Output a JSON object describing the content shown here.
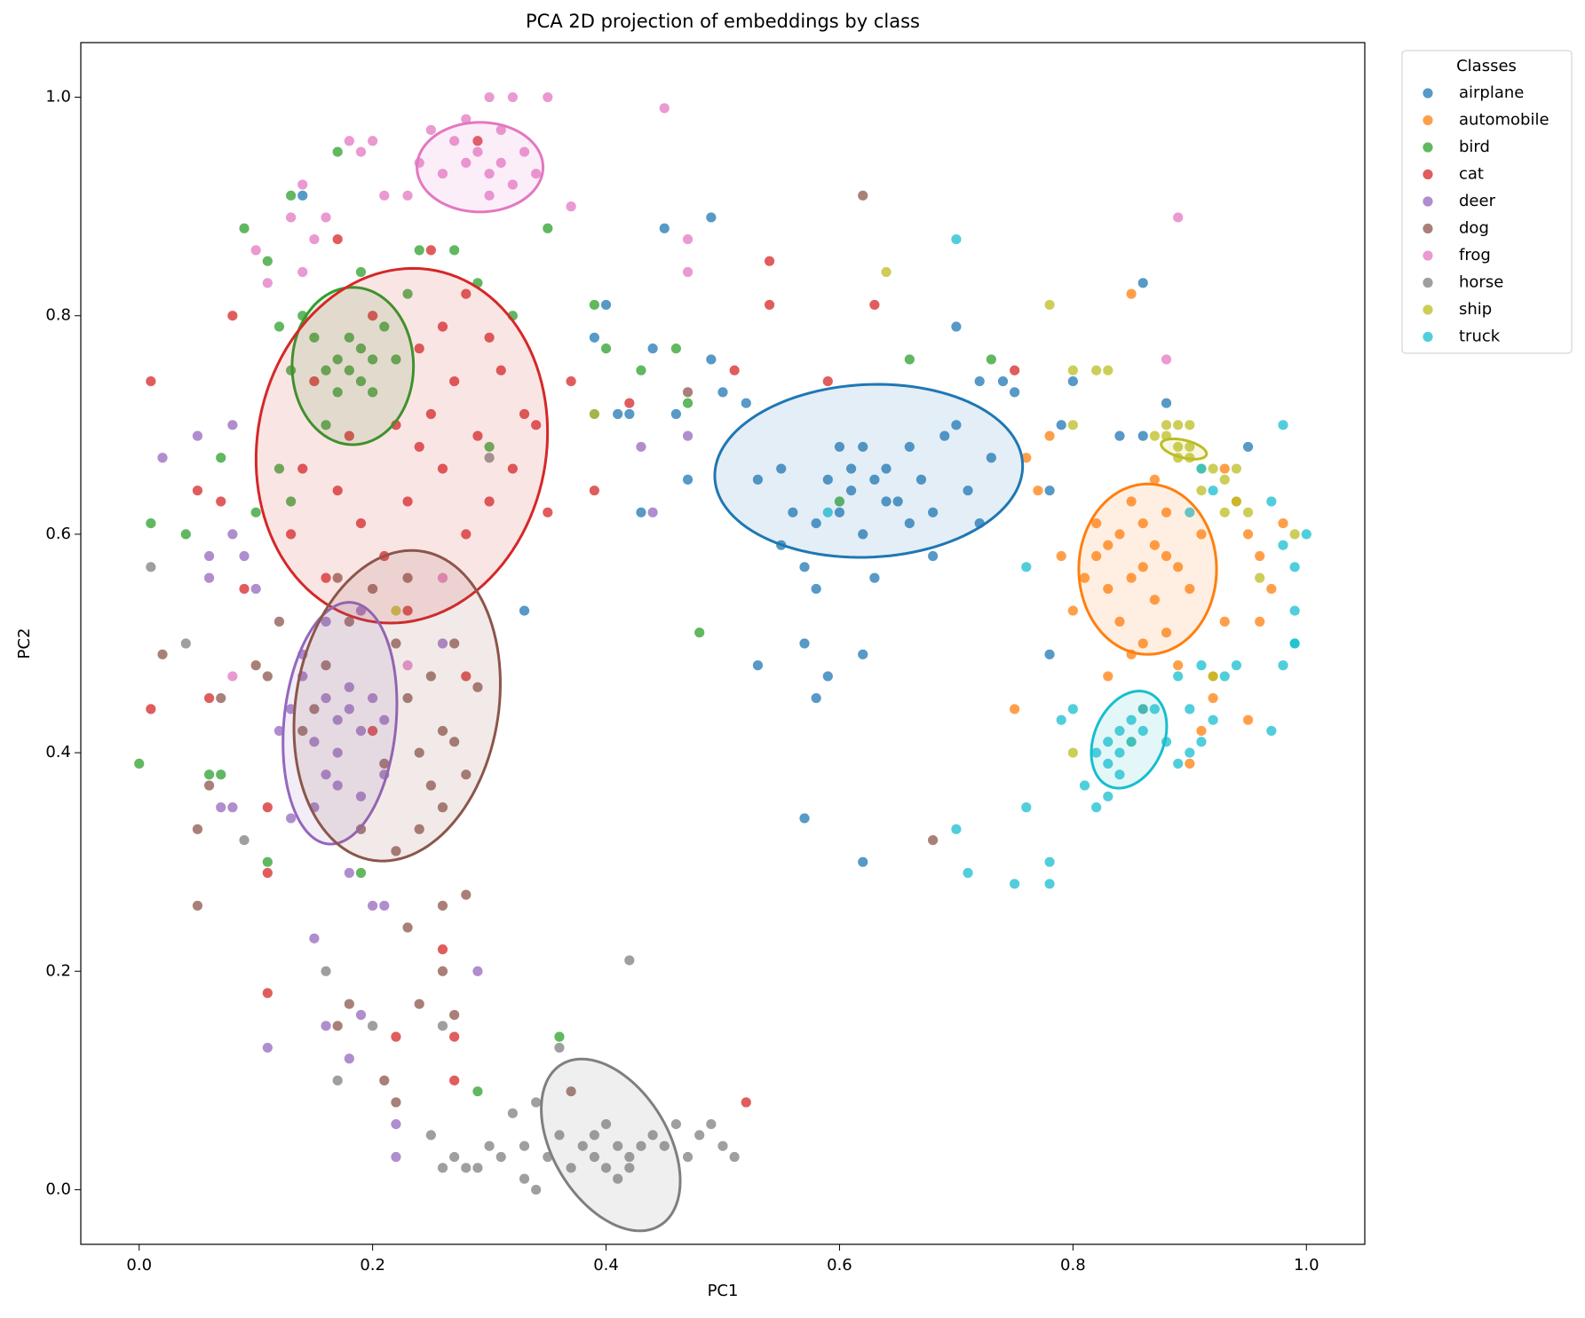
{
  "chart_data": {
    "type": "scatter",
    "title": "PCA 2D projection of embeddings by class",
    "x_label": "PC1",
    "y_label": "PC2",
    "xlim": [
      -0.05,
      1.05
    ],
    "ylim": [
      -0.05,
      1.05
    ],
    "xticks": [
      {
        "value": 0,
        "label": "0.0"
      },
      0.2,
      0.4,
      0.6,
      0.8,
      {
        "value": 1,
        "label": "1.0"
      }
    ],
    "yticks": [
      {
        "value": 0,
        "label": "0.0"
      },
      0.2,
      0.4,
      0.6,
      0.8,
      {
        "value": 1,
        "label": "1.0"
      }
    ],
    "grid": false,
    "legend": "outside-upper-right",
    "legend_title": "Classes",
    "series": [
      {
        "name": "airplane",
        "color": "#1f77b4",
        "x": [
          0.5,
          0.52,
          0.49,
          0.46,
          0.44,
          0.42,
          0.4,
          0.39,
          0.47,
          0.49,
          0.45,
          0.14,
          0.53,
          0.55,
          0.56,
          0.57,
          0.58,
          0.57,
          0.53,
          0.58,
          0.59,
          0.62,
          0.63,
          0.6,
          0.61,
          0.62,
          0.63,
          0.64,
          0.65,
          0.66,
          0.67,
          0.68,
          0.69,
          0.7,
          0.71,
          0.72,
          0.73,
          0.6,
          0.61,
          0.62,
          0.64,
          0.59,
          0.58,
          0.66,
          0.7,
          0.72,
          0.74,
          0.75,
          0.79,
          0.8,
          0.78,
          0.84,
          0.88,
          0.86,
          0.95,
          0.57,
          0.62,
          0.33,
          0.43,
          0.41,
          0.86,
          0.78,
          0.68,
          0.55,
          0.39
        ],
        "values": [
          0.73,
          0.72,
          0.76,
          0.71,
          0.77,
          0.71,
          0.81,
          0.78,
          0.65,
          0.89,
          0.88,
          0.91,
          0.65,
          0.66,
          0.62,
          0.57,
          0.55,
          0.5,
          0.48,
          0.45,
          0.47,
          0.49,
          0.56,
          0.68,
          0.66,
          0.68,
          0.65,
          0.66,
          0.63,
          0.61,
          0.65,
          0.62,
          0.69,
          0.7,
          0.64,
          0.61,
          0.67,
          0.62,
          0.64,
          0.6,
          0.63,
          0.65,
          0.61,
          0.68,
          0.79,
          0.74,
          0.74,
          0.73,
          0.7,
          0.74,
          0.64,
          0.69,
          0.72,
          0.83,
          0.68,
          0.34,
          0.3,
          0.53,
          0.62,
          0.71,
          0.69,
          0.49,
          0.58,
          0.59,
          0.71
        ],
        "ellipse": {
          "center": [
            0.625,
            0.658
          ],
          "radii": [
            0.132,
            0.079
          ],
          "angle": 3
        }
      },
      {
        "name": "automobile",
        "color": "#ff7f0e",
        "x": [
          0.82,
          0.83,
          0.84,
          0.85,
          0.86,
          0.87,
          0.88,
          0.89,
          0.84,
          0.86,
          0.88,
          0.9,
          0.91,
          0.85,
          0.87,
          0.83,
          0.85,
          0.89,
          0.82,
          0.81,
          0.8,
          0.79,
          0.77,
          0.76,
          0.78,
          0.85,
          0.93,
          0.94,
          0.95,
          0.96,
          0.97,
          0.98,
          0.95,
          0.92,
          0.91,
          0.9,
          0.92,
          0.93,
          0.96,
          0.75,
          0.86,
          0.83,
          0.87,
          0.88,
          0.86
        ],
        "values": [
          0.58,
          0.55,
          0.6,
          0.56,
          0.61,
          0.54,
          0.58,
          0.57,
          0.52,
          0.5,
          0.51,
          0.55,
          0.6,
          0.63,
          0.65,
          0.47,
          0.49,
          0.48,
          0.61,
          0.56,
          0.53,
          0.58,
          0.64,
          0.67,
          0.69,
          0.82,
          0.66,
          0.63,
          0.6,
          0.58,
          0.55,
          0.61,
          0.43,
          0.45,
          0.42,
          0.39,
          0.47,
          0.52,
          0.52,
          0.44,
          0.44,
          0.59,
          0.59,
          0.62,
          0.57
        ],
        "ellipse": {
          "center": [
            0.864,
            0.568
          ],
          "radii": [
            0.059,
            0.078
          ],
          "angle": 0
        }
      },
      {
        "name": "bird",
        "color": "#2ca02c",
        "x": [
          0.17,
          0.18,
          0.19,
          0.18,
          0.19,
          0.2,
          0.16,
          0.17,
          0.15,
          0.14,
          0.21,
          0.22,
          0.2,
          0.16,
          0.13,
          0.12,
          0.23,
          0.24,
          0.27,
          0.29,
          0.32,
          0.35,
          0.17,
          0.13,
          0.11,
          0.09,
          0.12,
          0.1,
          0.13,
          0.07,
          0.04,
          0.01,
          0.0,
          0.06,
          0.07,
          0.11,
          0.19,
          0.48,
          0.39,
          0.4,
          0.46,
          0.43,
          0.47,
          0.36,
          0.29,
          0.3,
          0.6,
          0.66,
          0.73,
          0.19
        ],
        "values": [
          0.76,
          0.75,
          0.77,
          0.78,
          0.74,
          0.76,
          0.75,
          0.73,
          0.78,
          0.8,
          0.79,
          0.76,
          0.73,
          0.7,
          0.75,
          0.79,
          0.82,
          0.86,
          0.86,
          0.83,
          0.8,
          0.88,
          0.95,
          0.91,
          0.85,
          0.88,
          0.66,
          0.62,
          0.63,
          0.67,
          0.6,
          0.61,
          0.39,
          0.38,
          0.38,
          0.3,
          0.29,
          0.51,
          0.81,
          0.77,
          0.77,
          0.75,
          0.72,
          0.14,
          0.09,
          0.68,
          0.63,
          0.76,
          0.76,
          0.84
        ],
        "ellipse": {
          "center": [
            0.183,
            0.754
          ],
          "radii": [
            0.052,
            0.072
          ],
          "angle": 0
        }
      },
      {
        "name": "cat",
        "color": "#d62728",
        "x": [
          0.2,
          0.22,
          0.25,
          0.24,
          0.27,
          0.26,
          0.28,
          0.3,
          0.23,
          0.21,
          0.19,
          0.17,
          0.16,
          0.18,
          0.15,
          0.14,
          0.13,
          0.24,
          0.26,
          0.28,
          0.3,
          0.31,
          0.33,
          0.32,
          0.29,
          0.34,
          0.35,
          0.25,
          0.17,
          0.08,
          0.01,
          0.05,
          0.07,
          0.09,
          0.06,
          0.01,
          0.11,
          0.11,
          0.11,
          0.22,
          0.26,
          0.27,
          0.27,
          0.52,
          0.39,
          0.37,
          0.42,
          0.54,
          0.51,
          0.54,
          0.63,
          0.59,
          0.75,
          0.29,
          0.23,
          0.2,
          0.28
        ],
        "values": [
          0.8,
          0.7,
          0.71,
          0.68,
          0.74,
          0.66,
          0.6,
          0.63,
          0.63,
          0.58,
          0.61,
          0.64,
          0.56,
          0.69,
          0.74,
          0.66,
          0.6,
          0.77,
          0.79,
          0.82,
          0.78,
          0.75,
          0.71,
          0.66,
          0.69,
          0.7,
          0.62,
          0.86,
          0.87,
          0.8,
          0.74,
          0.64,
          0.63,
          0.55,
          0.45,
          0.44,
          0.35,
          0.29,
          0.18,
          0.14,
          0.22,
          0.14,
          0.1,
          0.08,
          0.64,
          0.74,
          0.72,
          0.85,
          0.75,
          0.81,
          0.81,
          0.74,
          0.75,
          0.96,
          0.53,
          0.42,
          0.47
        ],
        "ellipse": {
          "center": [
            0.225,
            0.681
          ],
          "radii": [
            0.124,
            0.163
          ],
          "angle": -8
        }
      },
      {
        "name": "deer",
        "color": "#9467bd",
        "x": [
          0.16,
          0.17,
          0.18,
          0.15,
          0.19,
          0.17,
          0.16,
          0.18,
          0.14,
          0.2,
          0.21,
          0.15,
          0.17,
          0.19,
          0.13,
          0.14,
          0.16,
          0.19,
          0.13,
          0.12,
          0.21,
          0.18,
          0.2,
          0.21,
          0.15,
          0.16,
          0.18,
          0.19,
          0.22,
          0.22,
          0.29,
          0.11,
          0.09,
          0.08,
          0.06,
          0.05,
          0.02,
          0.08,
          0.06,
          0.07,
          0.08,
          0.26,
          0.44,
          0.43,
          0.47,
          0.1
        ],
        "values": [
          0.45,
          0.43,
          0.44,
          0.41,
          0.42,
          0.4,
          0.38,
          0.46,
          0.47,
          0.45,
          0.43,
          0.35,
          0.37,
          0.36,
          0.34,
          0.49,
          0.52,
          0.53,
          0.44,
          0.42,
          0.38,
          0.29,
          0.26,
          0.26,
          0.23,
          0.15,
          0.12,
          0.16,
          0.06,
          0.03,
          0.2,
          0.13,
          0.58,
          0.6,
          0.58,
          0.69,
          0.67,
          0.7,
          0.56,
          0.35,
          0.35,
          0.5,
          0.62,
          0.68,
          0.69,
          0.55
        ],
        "ellipse": {
          "center": [
            0.172,
            0.427
          ],
          "radii": [
            0.048,
            0.111
          ],
          "angle": -5
        }
      },
      {
        "name": "dog",
        "color": "#8c564b",
        "x": [
          0.23,
          0.25,
          0.24,
          0.26,
          0.27,
          0.28,
          0.25,
          0.21,
          0.22,
          0.2,
          0.17,
          0.18,
          0.16,
          0.15,
          0.24,
          0.22,
          0.26,
          0.29,
          0.27,
          0.14,
          0.19,
          0.26,
          0.28,
          0.23,
          0.05,
          0.05,
          0.07,
          0.06,
          0.02,
          0.1,
          0.11,
          0.18,
          0.21,
          0.27,
          0.26,
          0.24,
          0.22,
          0.17,
          0.37,
          0.47,
          0.62,
          0.68,
          0.23,
          0.12
        ],
        "values": [
          0.45,
          0.47,
          0.4,
          0.42,
          0.41,
          0.38,
          0.37,
          0.39,
          0.5,
          0.55,
          0.56,
          0.52,
          0.48,
          0.44,
          0.33,
          0.31,
          0.35,
          0.46,
          0.5,
          0.42,
          0.33,
          0.26,
          0.27,
          0.24,
          0.26,
          0.33,
          0.45,
          0.37,
          0.49,
          0.48,
          0.47,
          0.17,
          0.1,
          0.16,
          0.2,
          0.17,
          0.08,
          0.15,
          0.09,
          0.73,
          0.91,
          0.32,
          0.56,
          0.52
        ],
        "ellipse": {
          "center": [
            0.221,
            0.443
          ],
          "radii": [
            0.087,
            0.143
          ],
          "angle": -8
        }
      },
      {
        "name": "frog",
        "color": "#e377c2",
        "x": [
          0.28,
          0.29,
          0.3,
          0.31,
          0.32,
          0.27,
          0.26,
          0.33,
          0.3,
          0.25,
          0.24,
          0.34,
          0.31,
          0.3,
          0.32,
          0.35,
          0.28,
          0.23,
          0.21,
          0.18,
          0.19,
          0.2,
          0.14,
          0.16,
          0.15,
          0.13,
          0.11,
          0.1,
          0.14,
          0.37,
          0.45,
          0.47,
          0.47,
          0.89,
          0.88,
          0.08,
          0.26,
          0.23
        ],
        "values": [
          0.94,
          0.95,
          0.93,
          0.94,
          0.92,
          0.96,
          0.93,
          0.95,
          0.91,
          0.97,
          0.94,
          0.93,
          0.97,
          1.0,
          1.0,
          1.0,
          0.98,
          0.91,
          0.91,
          0.96,
          0.95,
          0.96,
          0.92,
          0.89,
          0.87,
          0.89,
          0.83,
          0.86,
          0.84,
          0.9,
          0.99,
          0.87,
          0.84,
          0.89,
          0.76,
          0.47,
          0.56,
          0.48
        ],
        "ellipse": {
          "center": [
            0.292,
            0.936
          ],
          "radii": [
            0.054,
            0.041
          ],
          "angle": 0
        }
      },
      {
        "name": "horse",
        "color": "#7f7f7f",
        "x": [
          0.38,
          0.39,
          0.4,
          0.41,
          0.42,
          0.43,
          0.44,
          0.45,
          0.39,
          0.41,
          0.42,
          0.37,
          0.36,
          0.35,
          0.33,
          0.31,
          0.32,
          0.3,
          0.29,
          0.27,
          0.25,
          0.26,
          0.46,
          0.47,
          0.48,
          0.49,
          0.5,
          0.51,
          0.36,
          0.34,
          0.4,
          0.42,
          0.33,
          0.28,
          0.34,
          0.17,
          0.2,
          0.16,
          0.04,
          0.01,
          0.09,
          0.26,
          0.3
        ],
        "values": [
          0.04,
          0.03,
          0.02,
          0.04,
          0.03,
          0.04,
          0.05,
          0.04,
          0.05,
          0.01,
          0.02,
          0.02,
          0.05,
          0.03,
          0.04,
          0.03,
          0.07,
          0.04,
          0.02,
          0.03,
          0.05,
          0.02,
          0.06,
          0.03,
          0.05,
          0.06,
          0.04,
          0.03,
          0.13,
          0.08,
          0.06,
          0.21,
          0.01,
          0.02,
          0.0,
          0.1,
          0.15,
          0.2,
          0.5,
          0.57,
          0.32,
          0.15,
          0.67
        ],
        "ellipse": {
          "center": [
            0.404,
            0.041
          ],
          "radii": [
            0.085,
            0.05
          ],
          "angle": -62
        }
      },
      {
        "name": "ship",
        "color": "#bcbd22",
        "x": [
          0.88,
          0.89,
          0.9,
          0.88,
          0.87,
          0.89,
          0.9,
          0.91,
          0.92,
          0.93,
          0.94,
          0.93,
          0.94,
          0.96,
          0.99,
          0.89,
          0.9,
          0.83,
          0.82,
          0.8,
          0.78,
          0.8,
          0.64,
          0.39,
          0.22,
          0.8,
          0.85,
          0.92,
          0.91,
          0.95
        ],
        "values": [
          0.69,
          0.68,
          0.68,
          0.7,
          0.69,
          0.67,
          0.67,
          0.66,
          0.66,
          0.65,
          0.66,
          0.62,
          0.63,
          0.56,
          0.6,
          0.7,
          0.7,
          0.75,
          0.75,
          0.75,
          0.81,
          0.7,
          0.84,
          0.71,
          0.53,
          0.4,
          0.41,
          0.47,
          0.64,
          0.62
        ],
        "ellipse": {
          "center": [
            0.895,
            0.678
          ],
          "radii": [
            0.02,
            0.008
          ],
          "angle": -15
        }
      },
      {
        "name": "truck",
        "color": "#17becf",
        "x": [
          0.83,
          0.84,
          0.85,
          0.84,
          0.83,
          0.85,
          0.86,
          0.82,
          0.84,
          0.86,
          0.81,
          0.82,
          0.83,
          0.87,
          0.88,
          0.89,
          0.9,
          0.91,
          0.92,
          0.9,
          0.89,
          0.93,
          0.91,
          0.94,
          0.97,
          0.98,
          0.99,
          0.99,
          1.0,
          0.99,
          0.98,
          0.97,
          0.98,
          0.91,
          0.9,
          0.92,
          0.8,
          0.79,
          0.76,
          0.78,
          0.78,
          0.75,
          0.71,
          0.7,
          0.76,
          0.7,
          0.59,
          0.99
        ],
        "values": [
          0.41,
          0.4,
          0.41,
          0.42,
          0.39,
          0.43,
          0.42,
          0.4,
          0.38,
          0.44,
          0.37,
          0.35,
          0.36,
          0.44,
          0.41,
          0.39,
          0.4,
          0.41,
          0.43,
          0.44,
          0.47,
          0.47,
          0.48,
          0.48,
          0.42,
          0.48,
          0.5,
          0.53,
          0.6,
          0.57,
          0.59,
          0.63,
          0.7,
          0.66,
          0.62,
          0.64,
          0.44,
          0.43,
          0.35,
          0.3,
          0.28,
          0.28,
          0.29,
          0.33,
          0.57,
          0.87,
          0.62,
          0.5
        ],
        "ellipse": {
          "center": [
            0.848,
            0.412
          ],
          "radii": [
            0.03,
            0.046
          ],
          "angle": -20
        }
      }
    ]
  }
}
